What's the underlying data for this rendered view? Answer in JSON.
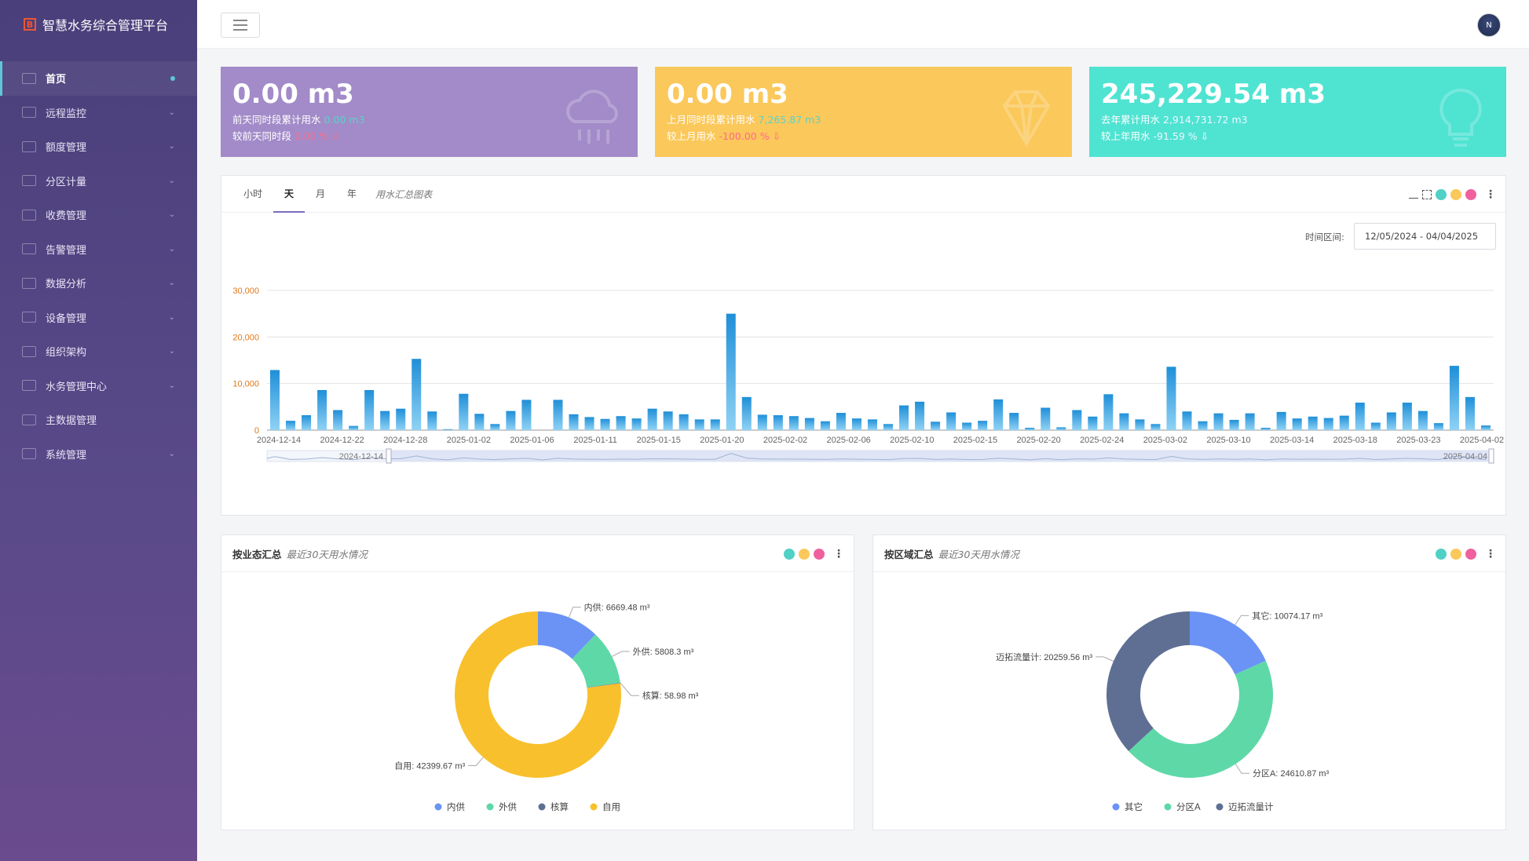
{
  "app": {
    "title": "智慧水务综合管理平台",
    "logo_text": "B"
  },
  "sidebar": {
    "items": [
      {
        "label": "首页",
        "icon": "home-icon",
        "active": true
      },
      {
        "label": "远程监控",
        "icon": "monitor-icon"
      },
      {
        "label": "额度管理",
        "icon": "quota-icon"
      },
      {
        "label": "分区计量",
        "icon": "grid-icon"
      },
      {
        "label": "收费管理",
        "icon": "billing-icon"
      },
      {
        "label": "告警管理",
        "icon": "alarm-icon"
      },
      {
        "label": "数据分析",
        "icon": "analysis-icon"
      },
      {
        "label": "设备管理",
        "icon": "device-icon"
      },
      {
        "label": "组织架构",
        "icon": "org-icon"
      },
      {
        "label": "水务管理中心",
        "icon": "center-icon"
      },
      {
        "label": "主数据管理",
        "icon": "masterdata-icon"
      },
      {
        "label": "系统管理",
        "icon": "settings-icon"
      }
    ]
  },
  "topbar": {
    "avatar_text": "N"
  },
  "stats": [
    {
      "value": "0.00 m3",
      "line1_label": "前天同时段累计用水",
      "line1_value": "0.00 m3",
      "line2_label": "较前天同时段",
      "line2_value": "0.00 %",
      "bg_color": "#a28bc8",
      "icon": "cloud-rain-icon"
    },
    {
      "value": "0.00 m3",
      "line1_label": "上月同时段累计用水",
      "line1_value": "7,265.87 m3",
      "line2_label": "较上月用水",
      "line2_value": "-100.00 %",
      "bg_color": "#fbc85b",
      "icon": "diamond-icon"
    },
    {
      "value": "245,229.54 m3",
      "line1_label": "去年累计用水",
      "line1_value": "2,914,731.72 m3",
      "line2_label": "较上年用水",
      "line2_value": "-91.59 %",
      "bg_color": "#4fe3d2",
      "icon": "bulb-icon"
    }
  ],
  "main_panel": {
    "tabs": [
      "小时",
      "天",
      "月",
      "年"
    ],
    "active_tab": "天",
    "title": "用水汇总图表",
    "range_label": "时间区间:",
    "range_value": "12/05/2024 - 04/04/2025",
    "dot_colors": [
      "#4fd1c5",
      "#fbc85b",
      "#f0609e"
    ],
    "zoom_start": "2024-12-14",
    "zoom_end": "2025-04-04"
  },
  "chart_data": [
    {
      "type": "bar",
      "ylim": [
        0,
        30000
      ],
      "yticks": [
        "0",
        "10,000",
        "20,000",
        "30,000"
      ],
      "xtick_labels": [
        "2024-12-14",
        "2024-12-22",
        "2024-12-28",
        "2025-01-02",
        "2025-01-06",
        "2025-01-11",
        "2025-01-15",
        "2025-01-20",
        "2025-02-02",
        "2025-02-06",
        "2025-02-10",
        "2025-02-15",
        "2025-02-20",
        "2025-02-24",
        "2025-03-02",
        "2025-03-10",
        "2025-03-14",
        "2025-03-18",
        "2025-03-23",
        "2025-04-02"
      ],
      "values": [
        12900,
        2000,
        3200,
        8600,
        4300,
        900,
        8600,
        4100,
        4600,
        15300,
        4000,
        200,
        7800,
        3500,
        1300,
        4100,
        6500,
        0,
        6500,
        3400,
        2800,
        2400,
        3000,
        2500,
        4600,
        4000,
        3400,
        2300,
        2300,
        25000,
        7100,
        3300,
        3200,
        3000,
        2600,
        1900,
        3700,
        2500,
        2300,
        1300,
        5300,
        6100,
        1800,
        3800,
        1600,
        2000,
        6600,
        3700,
        500,
        4800,
        600,
        4300,
        2900,
        7700,
        3600,
        2300,
        1300,
        13600,
        4000,
        1900,
        3600,
        2200,
        3600,
        500,
        3900,
        2500,
        2900,
        2600,
        3100,
        5900,
        1600,
        3800,
        5900,
        4100,
        1500,
        13800,
        7100,
        1000
      ]
    },
    {
      "type": "pie",
      "title": "按业态汇总",
      "subtitle": "最近30天用水情况",
      "labels": [
        "内供",
        "外供",
        "核算",
        "自用"
      ],
      "values": [
        6669.48,
        5808.3,
        58.98,
        42399.67
      ],
      "colors": [
        "#6b93f5",
        "#5fd8a8",
        "#5e6f93",
        "#f8c02c"
      ],
      "slice_labels": [
        "内供: 6669.48 m³",
        "外供: 5808.3 m³",
        "核算: 58.98 m³",
        "自用: 42399.67 m³"
      ]
    },
    {
      "type": "pie",
      "title": "按区域汇总",
      "subtitle": "最近30天用水情况",
      "labels": [
        "其它",
        "分区A",
        "迈拓流量计"
      ],
      "values": [
        10074.17,
        24610.87,
        20259.56
      ],
      "colors": [
        "#6b93f5",
        "#5fd8a8",
        "#5e6f93"
      ],
      "slice_labels": [
        "其它: 10074.17 m³",
        "分区A: 24610.87 m³",
        "迈拓流量计: 20259.56 m³"
      ]
    }
  ]
}
